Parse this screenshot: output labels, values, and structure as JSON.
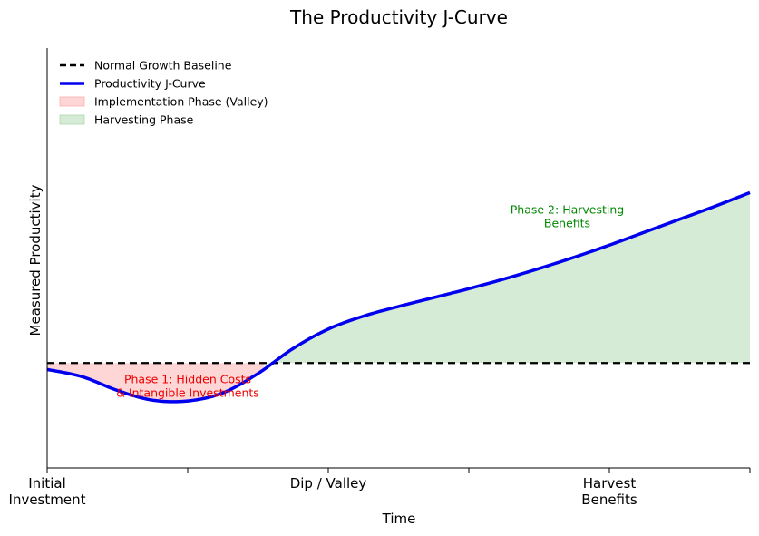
{
  "chart_data": {
    "type": "line",
    "title": "The Productivity J-Curve",
    "xlabel": "Time",
    "ylabel": "Measured Productivity",
    "xlim": [
      0,
      10
    ],
    "ylim": [
      -1.0,
      4.2
    ],
    "grid": false,
    "legend_position": "top-left",
    "x_ticks": [
      {
        "x": 0,
        "label": [
          "Initial",
          "Investment"
        ]
      },
      {
        "x": 2,
        "label": []
      },
      {
        "x": 4,
        "label": [
          "Dip / Valley"
        ]
      },
      {
        "x": 6,
        "label": []
      },
      {
        "x": 8,
        "label": [
          "Harvest",
          "Benefits"
        ]
      },
      {
        "x": 10,
        "label": []
      }
    ],
    "series": [
      {
        "name": "Normal Growth Baseline",
        "style": "dashed",
        "color": "#000000",
        "x": [
          0,
          10
        ],
        "y": [
          0.3,
          0.3
        ]
      },
      {
        "name": "Productivity J-Curve",
        "style": "solid",
        "color": "#0000ee",
        "x": [
          0,
          0.5,
          1.0,
          1.5,
          2.0,
          2.5,
          3.0,
          3.5,
          4.0,
          4.5,
          5.0,
          5.5,
          6.0,
          6.5,
          7.0,
          7.5,
          8.0,
          8.5,
          9.0,
          9.5,
          10.0
        ],
        "y": [
          0.22,
          0.13,
          -0.04,
          -0.16,
          -0.17,
          -0.07,
          0.17,
          0.48,
          0.72,
          0.88,
          1.0,
          1.11,
          1.22,
          1.34,
          1.47,
          1.61,
          1.76,
          1.92,
          2.08,
          2.24,
          2.41
        ]
      }
    ],
    "fills": [
      {
        "name": "Implementation Phase (Valley)",
        "color": "#ff9999",
        "opacity": 0.4,
        "x_range": [
          0,
          3.1
        ],
        "between": "baseline-and-curve"
      },
      {
        "name": "Harvesting Phase",
        "color": "#99cc99",
        "opacity": 0.4,
        "x_range": [
          3.1,
          10
        ],
        "between": "baseline-and-curve"
      }
    ],
    "annotations": [
      {
        "lines": [
          "Phase 1: Hidden Costs",
          "& Intangible Investments"
        ],
        "x": 2.0,
        "y": 0.05,
        "color": "#ee0000"
      },
      {
        "lines": [
          "Phase 2: Harvesting",
          "Benefits"
        ],
        "x": 7.4,
        "y": 2.15,
        "color": "#008800"
      }
    ]
  }
}
